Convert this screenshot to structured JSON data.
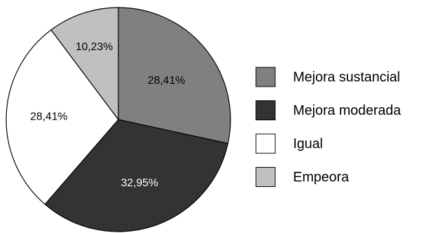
{
  "chart_data": {
    "type": "pie",
    "title": "",
    "categories": [
      "Mejora sustancial",
      "Mejora moderada",
      "Igual",
      "Empeora"
    ],
    "values": [
      28.41,
      32.95,
      28.41,
      10.23
    ],
    "value_labels": [
      "28,41%",
      "32,95%",
      "28,41%",
      "10,23%"
    ],
    "colors": [
      "#808080",
      "#333333",
      "#ffffff",
      "#c0c0c0"
    ],
    "label_colors": [
      "#000000",
      "#ffffff",
      "#000000",
      "#000000"
    ],
    "start_angle_deg": 0,
    "direction": "clockwise",
    "legend_position": "right"
  }
}
